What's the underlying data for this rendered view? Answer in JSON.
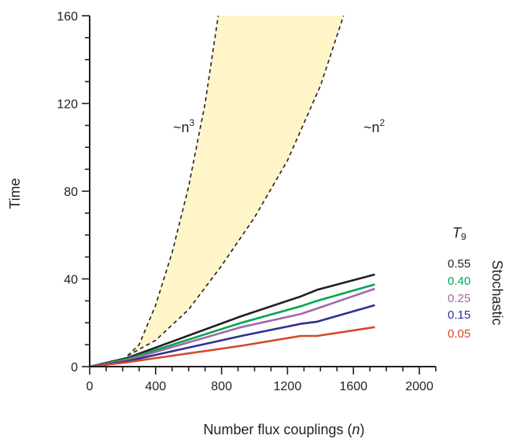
{
  "chart_data": {
    "type": "line",
    "xlabel_text": "Number flux couplings (",
    "xlabel_var": "n",
    "xlabel_close": ")",
    "ylabel": "Time",
    "xlim": [
      0,
      2100
    ],
    "ylim": [
      0,
      160
    ],
    "xticks": [
      0,
      400,
      800,
      1200,
      1600,
      2000
    ],
    "yticks": [
      0,
      40,
      80,
      120,
      160
    ],
    "grid": false,
    "legend_title": "T",
    "legend_title_sub": "9",
    "legend_group_label": "Stochastic",
    "series": [
      {
        "name": "0.55",
        "color": "#231f20",
        "x": [
          0,
          230,
          920,
          1280,
          1380,
          1730
        ],
        "y": [
          0,
          4,
          23,
          32,
          35,
          42
        ]
      },
      {
        "name": "0.40",
        "color": "#00a651",
        "x": [
          0,
          230,
          920,
          1280,
          1380,
          1730
        ],
        "y": [
          0,
          3.5,
          20,
          27.5,
          30,
          37.5
        ]
      },
      {
        "name": "0.25",
        "color": "#a06aa8",
        "x": [
          0,
          230,
          920,
          1280,
          1380,
          1730
        ],
        "y": [
          0,
          3,
          18,
          24,
          26.5,
          35.5
        ]
      },
      {
        "name": "0.15",
        "color": "#2e3192",
        "x": [
          0,
          230,
          920,
          1280,
          1380,
          1730
        ],
        "y": [
          0,
          2.5,
          14,
          19.5,
          20.5,
          28
        ]
      },
      {
        "name": "0.05",
        "color": "#d2492a",
        "x": [
          0,
          230,
          920,
          1280,
          1380,
          1730
        ],
        "y": [
          0,
          2,
          9.5,
          14,
          14,
          18
        ]
      }
    ],
    "band": {
      "fill": "#fff5c8",
      "upper_label": "~n",
      "upper_exp": "3",
      "lower_label": "~n",
      "lower_exp": "2",
      "upper_curve": {
        "x": [
          230,
          300,
          400,
          500,
          600,
          700,
          780
        ],
        "y": [
          5,
          10,
          28,
          52,
          82,
          120,
          160
        ]
      },
      "lower_curve": {
        "x": [
          230,
          400,
          600,
          800,
          1000,
          1200,
          1400,
          1540
        ],
        "y": [
          5,
          12,
          26,
          46,
          68,
          94,
          128,
          160
        ]
      }
    }
  }
}
